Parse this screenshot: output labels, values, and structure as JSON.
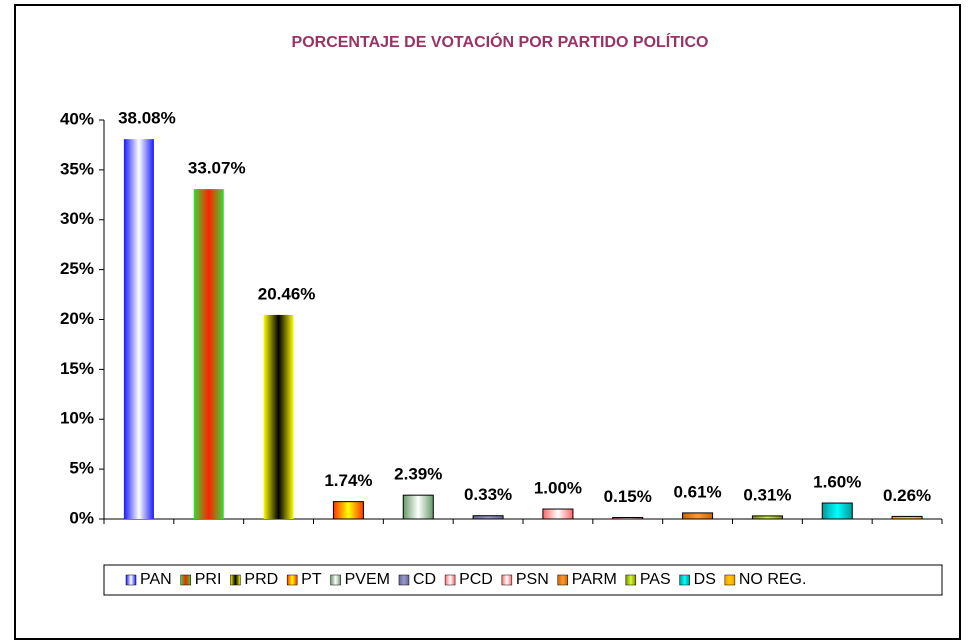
{
  "chart_data": {
    "type": "bar",
    "title": "PORCENTAJE DE VOTACIÓN POR PARTIDO POLÍTICO",
    "categories": [
      "PAN",
      "PRI",
      "PRD",
      "PT",
      "PVEM",
      "CD",
      "PCD",
      "PSN",
      "PARM",
      "PAS",
      "DS",
      "NO REG."
    ],
    "values": [
      38.08,
      33.07,
      20.46,
      1.74,
      2.39,
      0.33,
      1.0,
      0.15,
      0.61,
      0.31,
      1.6,
      0.26
    ],
    "value_labels": [
      "38.08%",
      "33.07%",
      "20.46%",
      "1.74%",
      "2.39%",
      "0.33%",
      "1.00%",
      "0.15%",
      "0.61%",
      "0.31%",
      "1.60%",
      "0.26%"
    ],
    "colors": [
      "#1a1aff",
      "#33dd33",
      "#ffff00",
      "#ff3300",
      "#669966",
      "#666699",
      "#ff6666",
      "#ff6666",
      "#cc6600",
      "#8a8a00",
      "#009999",
      "#ff9900"
    ],
    "highlight_colors": [
      "#ffffff",
      "#ff2200",
      "#000000",
      "#ffff00",
      "#ffffff",
      "#9999cc",
      "#ffffff",
      "#ffffff",
      "#ff9933",
      "#ccff33",
      "#00ffff",
      "#ffcc00"
    ],
    "ylim": [
      0,
      40
    ],
    "yticks": [
      {
        "value": 0,
        "label": "0%"
      },
      {
        "value": 5,
        "label": "5%"
      },
      {
        "value": 10,
        "label": "10%"
      },
      {
        "value": 15,
        "label": "15%"
      },
      {
        "value": 20,
        "label": "20%"
      },
      {
        "value": 25,
        "label": "25%"
      },
      {
        "value": 30,
        "label": "30%"
      },
      {
        "value": 35,
        "label": "35%"
      },
      {
        "value": 40,
        "label": "40%"
      }
    ],
    "legend": "bottom"
  }
}
